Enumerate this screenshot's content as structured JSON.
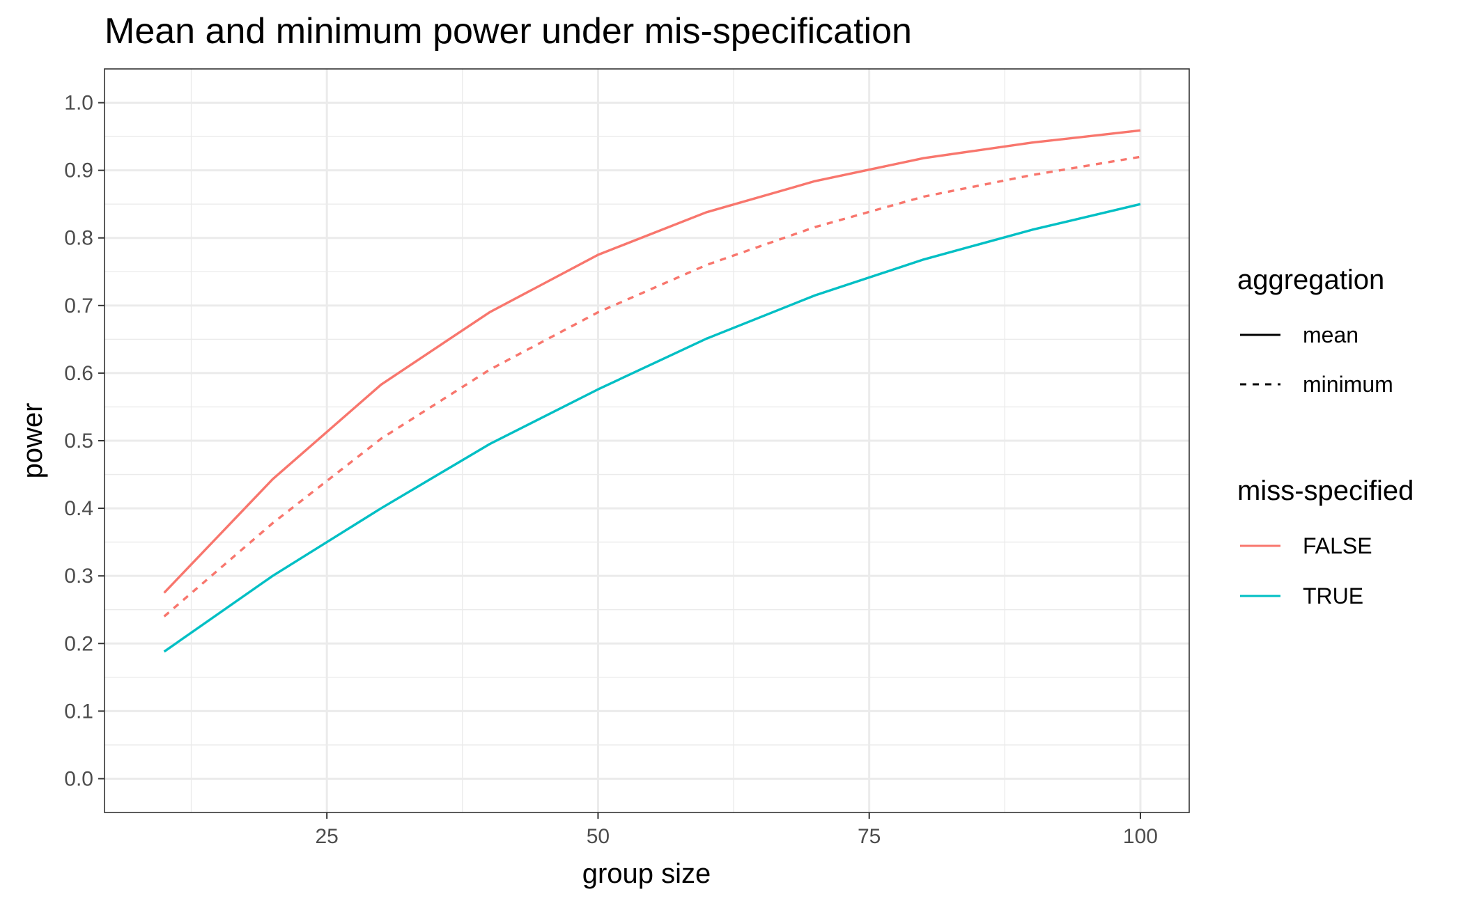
{
  "chart_data": {
    "type": "line",
    "title": "Mean and minimum power under mis-specification",
    "xlabel": "group size",
    "ylabel": "power",
    "xlim": [
      4.5,
      104.5
    ],
    "ylim": [
      -0.05,
      1.05
    ],
    "x_ticks": [
      25,
      50,
      75,
      100
    ],
    "y_ticks": [
      0.0,
      0.1,
      0.2,
      0.3,
      0.4,
      0.5,
      0.6,
      0.7,
      0.8,
      0.9,
      1.0
    ],
    "y_tick_labels": [
      "0.0",
      "0.1",
      "0.2",
      "0.3",
      "0.4",
      "0.5",
      "0.6",
      "0.7",
      "0.8",
      "0.9",
      "1.0"
    ],
    "x_tick_labels": [
      "25",
      "50",
      "75",
      "100"
    ],
    "grid": true,
    "legend_position": "right",
    "series": [
      {
        "miss_specified": "FALSE",
        "aggregation": "mean",
        "color": "#F8766D",
        "dash": "solid",
        "x": [
          10,
          20,
          30,
          40,
          50,
          60,
          70,
          80,
          90,
          100
        ],
        "values": [
          0.275,
          0.443,
          0.583,
          0.69,
          0.775,
          0.838,
          0.884,
          0.918,
          0.941,
          0.959
        ]
      },
      {
        "miss_specified": "FALSE",
        "aggregation": "minimum",
        "color": "#F8766D",
        "dash": "dashed",
        "x": [
          10,
          20,
          30,
          40,
          50,
          60,
          70,
          80,
          90,
          100
        ],
        "values": [
          0.24,
          0.378,
          0.503,
          0.605,
          0.69,
          0.76,
          0.816,
          0.861,
          0.893,
          0.92
        ]
      },
      {
        "miss_specified": "TRUE",
        "aggregation": "mean",
        "color": "#00BFC4",
        "dash": "solid",
        "x": [
          10,
          20,
          30,
          40,
          50,
          60,
          70,
          80,
          90,
          100
        ],
        "values": [
          0.188,
          0.3,
          0.4,
          0.495,
          0.576,
          0.651,
          0.715,
          0.768,
          0.812,
          0.85
        ]
      }
    ],
    "legend": {
      "aggregation": {
        "title": "aggregation",
        "entries": [
          {
            "label": "mean",
            "dash": "solid"
          },
          {
            "label": "minimum",
            "dash": "dashed"
          }
        ]
      },
      "miss_specified": {
        "title": "miss-specified",
        "entries": [
          {
            "label": "FALSE",
            "color": "#F8766D"
          },
          {
            "label": "TRUE",
            "color": "#00BFC4"
          }
        ]
      }
    }
  }
}
